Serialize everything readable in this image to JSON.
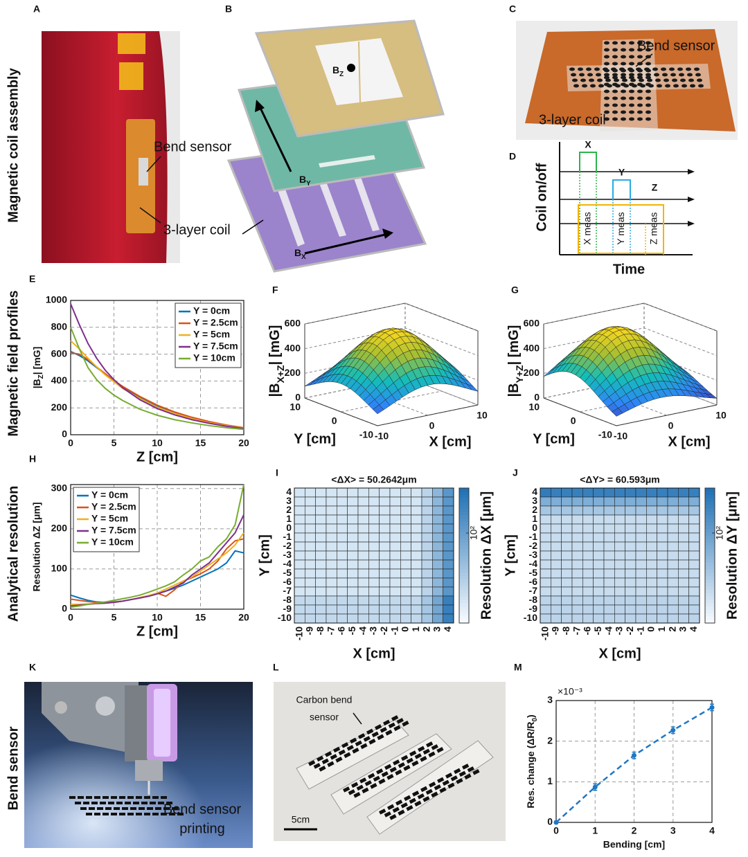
{
  "row_labels": [
    "Magnetic coil assembly",
    "Magnetic field profiles",
    "Analytical resolution",
    "Bend sensor"
  ],
  "panel_letters": [
    "A",
    "B",
    "C",
    "D",
    "E",
    "F",
    "G",
    "H",
    "I",
    "J",
    "K",
    "L",
    "M"
  ],
  "photos": {
    "A": [
      "Bend sensor",
      "3-layer coil"
    ],
    "B": [
      [
        "B",
        "Z"
      ],
      [
        "B",
        "Y"
      ],
      [
        "B",
        "X"
      ]
    ],
    "C": [
      "Bend sensor",
      "3-layer coil"
    ],
    "K": [
      "Bend sensor",
      "printing"
    ],
    "L": [
      "Carbon bend",
      "sensor",
      "5cm"
    ]
  },
  "timing": {
    "ylabel": "Coil on/off",
    "xlabel": "Time",
    "coils": [
      {
        "name": "X",
        "color": "#2bb34a"
      },
      {
        "name": "Y",
        "color": "#29abe2"
      },
      {
        "name": "Z",
        "color": "#f2b400"
      }
    ],
    "meas": [
      "X meas",
      "Y meas",
      "Z meas"
    ]
  },
  "chart_data": [
    {
      "type": "line",
      "x": [
        0,
        1,
        2,
        3,
        4,
        5,
        6,
        8,
        10,
        12,
        14,
        16,
        18,
        20
      ],
      "series": [
        {
          "name": "Y = 0cm",
          "color": "#0072bd",
          "values": [
            620,
            590,
            550,
            500,
            450,
            400,
            355,
            280,
            215,
            165,
            125,
            95,
            70,
            50
          ]
        },
        {
          "name": "Y = 2.5cm",
          "color": "#d95319",
          "values": [
            610,
            600,
            560,
            505,
            455,
            405,
            360,
            285,
            220,
            170,
            130,
            98,
            72,
            52
          ]
        },
        {
          "name": "Y = 5cm",
          "color": "#edb120",
          "values": [
            700,
            640,
            570,
            505,
            445,
            395,
            345,
            270,
            205,
            158,
            120,
            90,
            67,
            48
          ]
        },
        {
          "name": "Y = 7.5cm",
          "color": "#7e2f8e",
          "values": [
            975,
            820,
            680,
            570,
            480,
            410,
            350,
            260,
            195,
            148,
            112,
            85,
            63,
            46
          ]
        },
        {
          "name": "Y = 10cm",
          "color": "#77ac30",
          "values": [
            800,
            640,
            500,
            410,
            345,
            295,
            255,
            190,
            145,
            112,
            88,
            68,
            52,
            40
          ]
        }
      ],
      "xlabel": "Z [cm]",
      "ylabel": [
        "|B",
        "Z",
        "| [mG]"
      ],
      "xlim": [
        0,
        20
      ],
      "ylim": [
        0,
        1000
      ],
      "xticks": [
        0,
        5,
        10,
        15,
        20
      ],
      "yticks": [
        0,
        200,
        400,
        600,
        800,
        1000
      ],
      "grid": true,
      "legend": "upper right"
    },
    {
      "type": "surface",
      "xlabel": "X [cm]",
      "ylabel": "Y [cm]",
      "zlabel": [
        "|B",
        "X+Z",
        "| [mG]"
      ],
      "xlim": [
        -10,
        10
      ],
      "ylim": [
        -10,
        10
      ],
      "zlim": [
        0,
        600
      ],
      "xticks": [
        -10,
        0,
        10
      ],
      "yticks": [
        -10,
        0,
        10
      ],
      "zticks": [
        0,
        200,
        400,
        600
      ]
    },
    {
      "type": "surface",
      "xlabel": "X [cm]",
      "ylabel": "Y [cm]",
      "zlabel": [
        "|B",
        "Y+Z",
        "| [mG]"
      ],
      "xlim": [
        -10,
        10
      ],
      "ylim": [
        -10,
        10
      ],
      "zlim": [
        0,
        600
      ],
      "xticks": [
        -10,
        0,
        10
      ],
      "yticks": [
        -10,
        0,
        10
      ],
      "zticks": [
        0,
        200,
        400,
        600
      ]
    },
    {
      "type": "line",
      "x": [
        0,
        1,
        2,
        3,
        4,
        5,
        6,
        7,
        8,
        9,
        10,
        11,
        12,
        13,
        14,
        15,
        16,
        17,
        18,
        19,
        20
      ],
      "series": [
        {
          "name": "Y = 0cm",
          "color": "#0072bd",
          "values": [
            35,
            28,
            22,
            18,
            17,
            18,
            20,
            24,
            28,
            33,
            38,
            45,
            52,
            60,
            70,
            80,
            90,
            100,
            115,
            145,
            140
          ]
        },
        {
          "name": "Y = 2.5cm",
          "color": "#d95319",
          "values": [
            25,
            22,
            19,
            17,
            16,
            17,
            20,
            24,
            28,
            33,
            40,
            32,
            48,
            70,
            78,
            88,
            100,
            120,
            150,
            170,
            175
          ]
        },
        {
          "name": "Y = 5cm",
          "color": "#edb120",
          "values": [
            12,
            12,
            13,
            14,
            15,
            17,
            20,
            24,
            29,
            34,
            40,
            50,
            60,
            70,
            80,
            95,
            110,
            125,
            140,
            160,
            190
          ]
        },
        {
          "name": "Y = 7.5cm",
          "color": "#7e2f8e",
          "values": [
            8,
            10,
            12,
            14,
            15,
            17,
            20,
            24,
            28,
            32,
            38,
            45,
            55,
            65,
            85,
            100,
            115,
            140,
            165,
            190,
            235
          ]
        },
        {
          "name": "Y = 10cm",
          "color": "#77ac30",
          "values": [
            5,
            8,
            12,
            15,
            18,
            22,
            26,
            30,
            35,
            42,
            50,
            58,
            68,
            85,
            100,
            120,
            130,
            155,
            175,
            210,
            310
          ]
        }
      ],
      "xlabel": "Z [cm]",
      "ylabel": "Resolution ΔZ [μm]",
      "xlim": [
        0,
        20
      ],
      "ylim": [
        0,
        310
      ],
      "xticks": [
        0,
        5,
        10,
        15,
        20
      ],
      "yticks": [
        0,
        100,
        200,
        300
      ],
      "grid": true,
      "legend": "upper left"
    },
    {
      "type": "heatmap",
      "title": "<ΔX> = 50.2642μm",
      "xlabel": "X [cm]",
      "ylabel": "Y [cm]",
      "colorbar_label": "Resolution ΔX [μm]",
      "xcategories": [
        -10,
        -9,
        -8,
        -7,
        -6,
        -5,
        -4,
        -3,
        -2,
        -1,
        0,
        1,
        2,
        3,
        4
      ],
      "ycategories": [
        4,
        3,
        2,
        1,
        0,
        -1,
        -2,
        -3,
        -4,
        -5,
        -6,
        -7,
        -8,
        -9,
        -10
      ],
      "values": [
        [
          35,
          35,
          35,
          35,
          35,
          35,
          35,
          35,
          35,
          35,
          35,
          35,
          45,
          70,
          115
        ],
        [
          35,
          35,
          35,
          35,
          35,
          35,
          35,
          35,
          35,
          35,
          35,
          35,
          45,
          70,
          115
        ],
        [
          35,
          35,
          35,
          35,
          35,
          35,
          35,
          35,
          35,
          35,
          35,
          35,
          45,
          70,
          115
        ],
        [
          35,
          35,
          35,
          35,
          35,
          35,
          35,
          35,
          35,
          35,
          35,
          35,
          45,
          70,
          115
        ],
        [
          35,
          35,
          35,
          35,
          35,
          35,
          35,
          35,
          35,
          35,
          35,
          35,
          45,
          70,
          115
        ],
        [
          35,
          35,
          35,
          35,
          35,
          35,
          35,
          35,
          35,
          35,
          35,
          35,
          45,
          70,
          115
        ],
        [
          35,
          35,
          35,
          35,
          35,
          35,
          35,
          35,
          35,
          35,
          35,
          35,
          45,
          70,
          115
        ],
        [
          35,
          35,
          35,
          35,
          35,
          35,
          35,
          35,
          35,
          35,
          35,
          35,
          45,
          70,
          115
        ],
        [
          35,
          35,
          35,
          35,
          35,
          35,
          35,
          35,
          35,
          35,
          35,
          35,
          45,
          70,
          115
        ],
        [
          35,
          35,
          35,
          35,
          35,
          35,
          35,
          35,
          35,
          35,
          35,
          35,
          45,
          70,
          115
        ],
        [
          35,
          35,
          35,
          35,
          35,
          35,
          35,
          35,
          35,
          35,
          35,
          35,
          45,
          70,
          115
        ],
        [
          35,
          35,
          35,
          35,
          35,
          35,
          35,
          35,
          35,
          35,
          35,
          35,
          45,
          70,
          115
        ],
        [
          42,
          42,
          42,
          42,
          42,
          42,
          42,
          42,
          42,
          42,
          42,
          42,
          55,
          90,
          160
        ],
        [
          42,
          42,
          42,
          42,
          42,
          42,
          42,
          42,
          42,
          42,
          42,
          42,
          55,
          90,
          160
        ],
        [
          42,
          42,
          42,
          42,
          42,
          42,
          42,
          42,
          42,
          42,
          42,
          42,
          55,
          90,
          160
        ]
      ],
      "clim": [
        25,
        200
      ],
      "log_scale": true,
      "colorbar_ticks": [
        {
          "value": 100,
          "label": "10²"
        }
      ],
      "colormap": [
        "#f7fbff",
        "#2171b5"
      ]
    },
    {
      "type": "heatmap",
      "title": "<ΔY> = 60.593μm",
      "xlabel": "X [cm]",
      "ylabel": "Y [cm]",
      "colorbar_label": "Resolution ΔY [μm]",
      "xcategories": [
        -10,
        -9,
        -8,
        -7,
        -6,
        -5,
        -4,
        -3,
        -2,
        -1,
        0,
        1,
        2,
        3,
        4
      ],
      "ycategories": [
        4,
        3,
        2,
        1,
        0,
        -1,
        -2,
        -3,
        -4,
        -5,
        -6,
        -7,
        -8,
        -9,
        -10
      ],
      "values": [
        [
          170,
          160,
          160,
          160,
          160,
          160,
          160,
          160,
          160,
          160,
          160,
          160,
          160,
          160,
          160
        ],
        [
          80,
          80,
          80,
          80,
          80,
          80,
          80,
          80,
          80,
          80,
          80,
          80,
          80,
          80,
          80
        ],
        [
          55,
          55,
          55,
          55,
          55,
          55,
          55,
          55,
          55,
          55,
          55,
          55,
          55,
          55,
          55
        ],
        [
          40,
          40,
          40,
          40,
          40,
          40,
          40,
          40,
          40,
          40,
          40,
          40,
          40,
          40,
          40
        ],
        [
          40,
          40,
          40,
          40,
          40,
          40,
          40,
          40,
          40,
          40,
          40,
          40,
          40,
          40,
          40
        ],
        [
          40,
          40,
          40,
          40,
          40,
          40,
          40,
          40,
          40,
          40,
          40,
          40,
          40,
          40,
          40
        ],
        [
          40,
          40,
          40,
          40,
          40,
          40,
          40,
          40,
          40,
          40,
          40,
          40,
          40,
          40,
          40
        ],
        [
          40,
          40,
          40,
          40,
          40,
          40,
          40,
          40,
          40,
          40,
          40,
          40,
          40,
          40,
          40
        ],
        [
          40,
          40,
          40,
          40,
          40,
          40,
          40,
          40,
          40,
          40,
          40,
          40,
          40,
          40,
          40
        ],
        [
          40,
          40,
          40,
          40,
          40,
          40,
          40,
          40,
          40,
          40,
          40,
          40,
          40,
          40,
          40
        ],
        [
          40,
          40,
          40,
          40,
          40,
          40,
          40,
          40,
          40,
          40,
          40,
          40,
          40,
          40,
          40
        ],
        [
          40,
          40,
          40,
          40,
          40,
          40,
          40,
          40,
          40,
          40,
          40,
          40,
          40,
          40,
          40
        ],
        [
          45,
          45,
          45,
          45,
          45,
          45,
          45,
          45,
          45,
          45,
          45,
          45,
          45,
          45,
          45
        ],
        [
          45,
          45,
          45,
          45,
          45,
          45,
          45,
          45,
          45,
          45,
          45,
          45,
          45,
          45,
          45
        ],
        [
          45,
          45,
          45,
          45,
          45,
          45,
          45,
          45,
          45,
          45,
          45,
          45,
          45,
          45,
          45
        ]
      ],
      "clim": [
        25,
        200
      ],
      "log_scale": true,
      "colorbar_ticks": [
        {
          "value": 100,
          "label": "10²"
        }
      ],
      "colormap": [
        "#f7fbff",
        "#2171b5"
      ]
    },
    {
      "type": "line",
      "x": [
        0,
        1,
        2,
        3,
        4
      ],
      "values": [
        0,
        0.87,
        1.65,
        2.27,
        2.83
      ],
      "errors": [
        0.03,
        0.08,
        0.08,
        0.08,
        0.08
      ],
      "color": "#1f77c4",
      "line_style": "dashed",
      "xlabel": "Bending [cm]",
      "ylabel": [
        "Res. change (ΔR/R",
        "0",
        ")"
      ],
      "y_scale_label": "×10⁻³",
      "xlim": [
        0,
        4
      ],
      "ylim": [
        0,
        3
      ],
      "xticks": [
        0,
        1,
        2,
        3,
        4
      ],
      "yticks": [
        0,
        1,
        2,
        3
      ],
      "grid": true
    }
  ]
}
